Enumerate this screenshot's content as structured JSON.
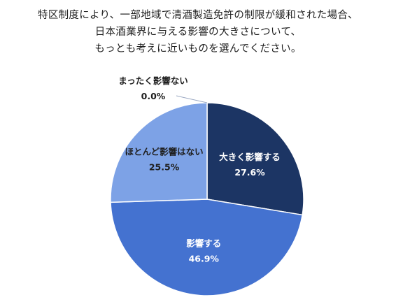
{
  "title_lines": [
    "特区制度により、一部地域で清酒製造免許の制限が緩和された場合、",
    "日本酒業界に与える影響の大きさについて、",
    "もっとも考えに近いものを選んでください。"
  ],
  "chart_data": {
    "type": "pie",
    "title": "特区制度により、一部地域で清酒製造免許の制限が緩和された場合、日本酒業界に与える影響の大きさについて、もっとも考えに近いものを選んでください。",
    "start": "12 o'clock",
    "direction": "clockwise",
    "slices": [
      {
        "label": "大きく影響する",
        "value": 27.6,
        "value_label": "27.6%",
        "color": "#1c3564",
        "text_color": "#ffffff"
      },
      {
        "label": "影響する",
        "value": 46.9,
        "value_label": "46.9%",
        "color": "#4472d0",
        "text_color": "#ffffff"
      },
      {
        "label": "ほとんど影響はない",
        "value": 25.5,
        "value_label": "25.5%",
        "color": "#7da2e6",
        "text_color": "#1f1f1f"
      },
      {
        "label": "まったく影響ない",
        "value": 0.0,
        "value_label": "0.0%",
        "color": "#c5d5f2",
        "text_color": "#1f1f1f"
      }
    ]
  }
}
